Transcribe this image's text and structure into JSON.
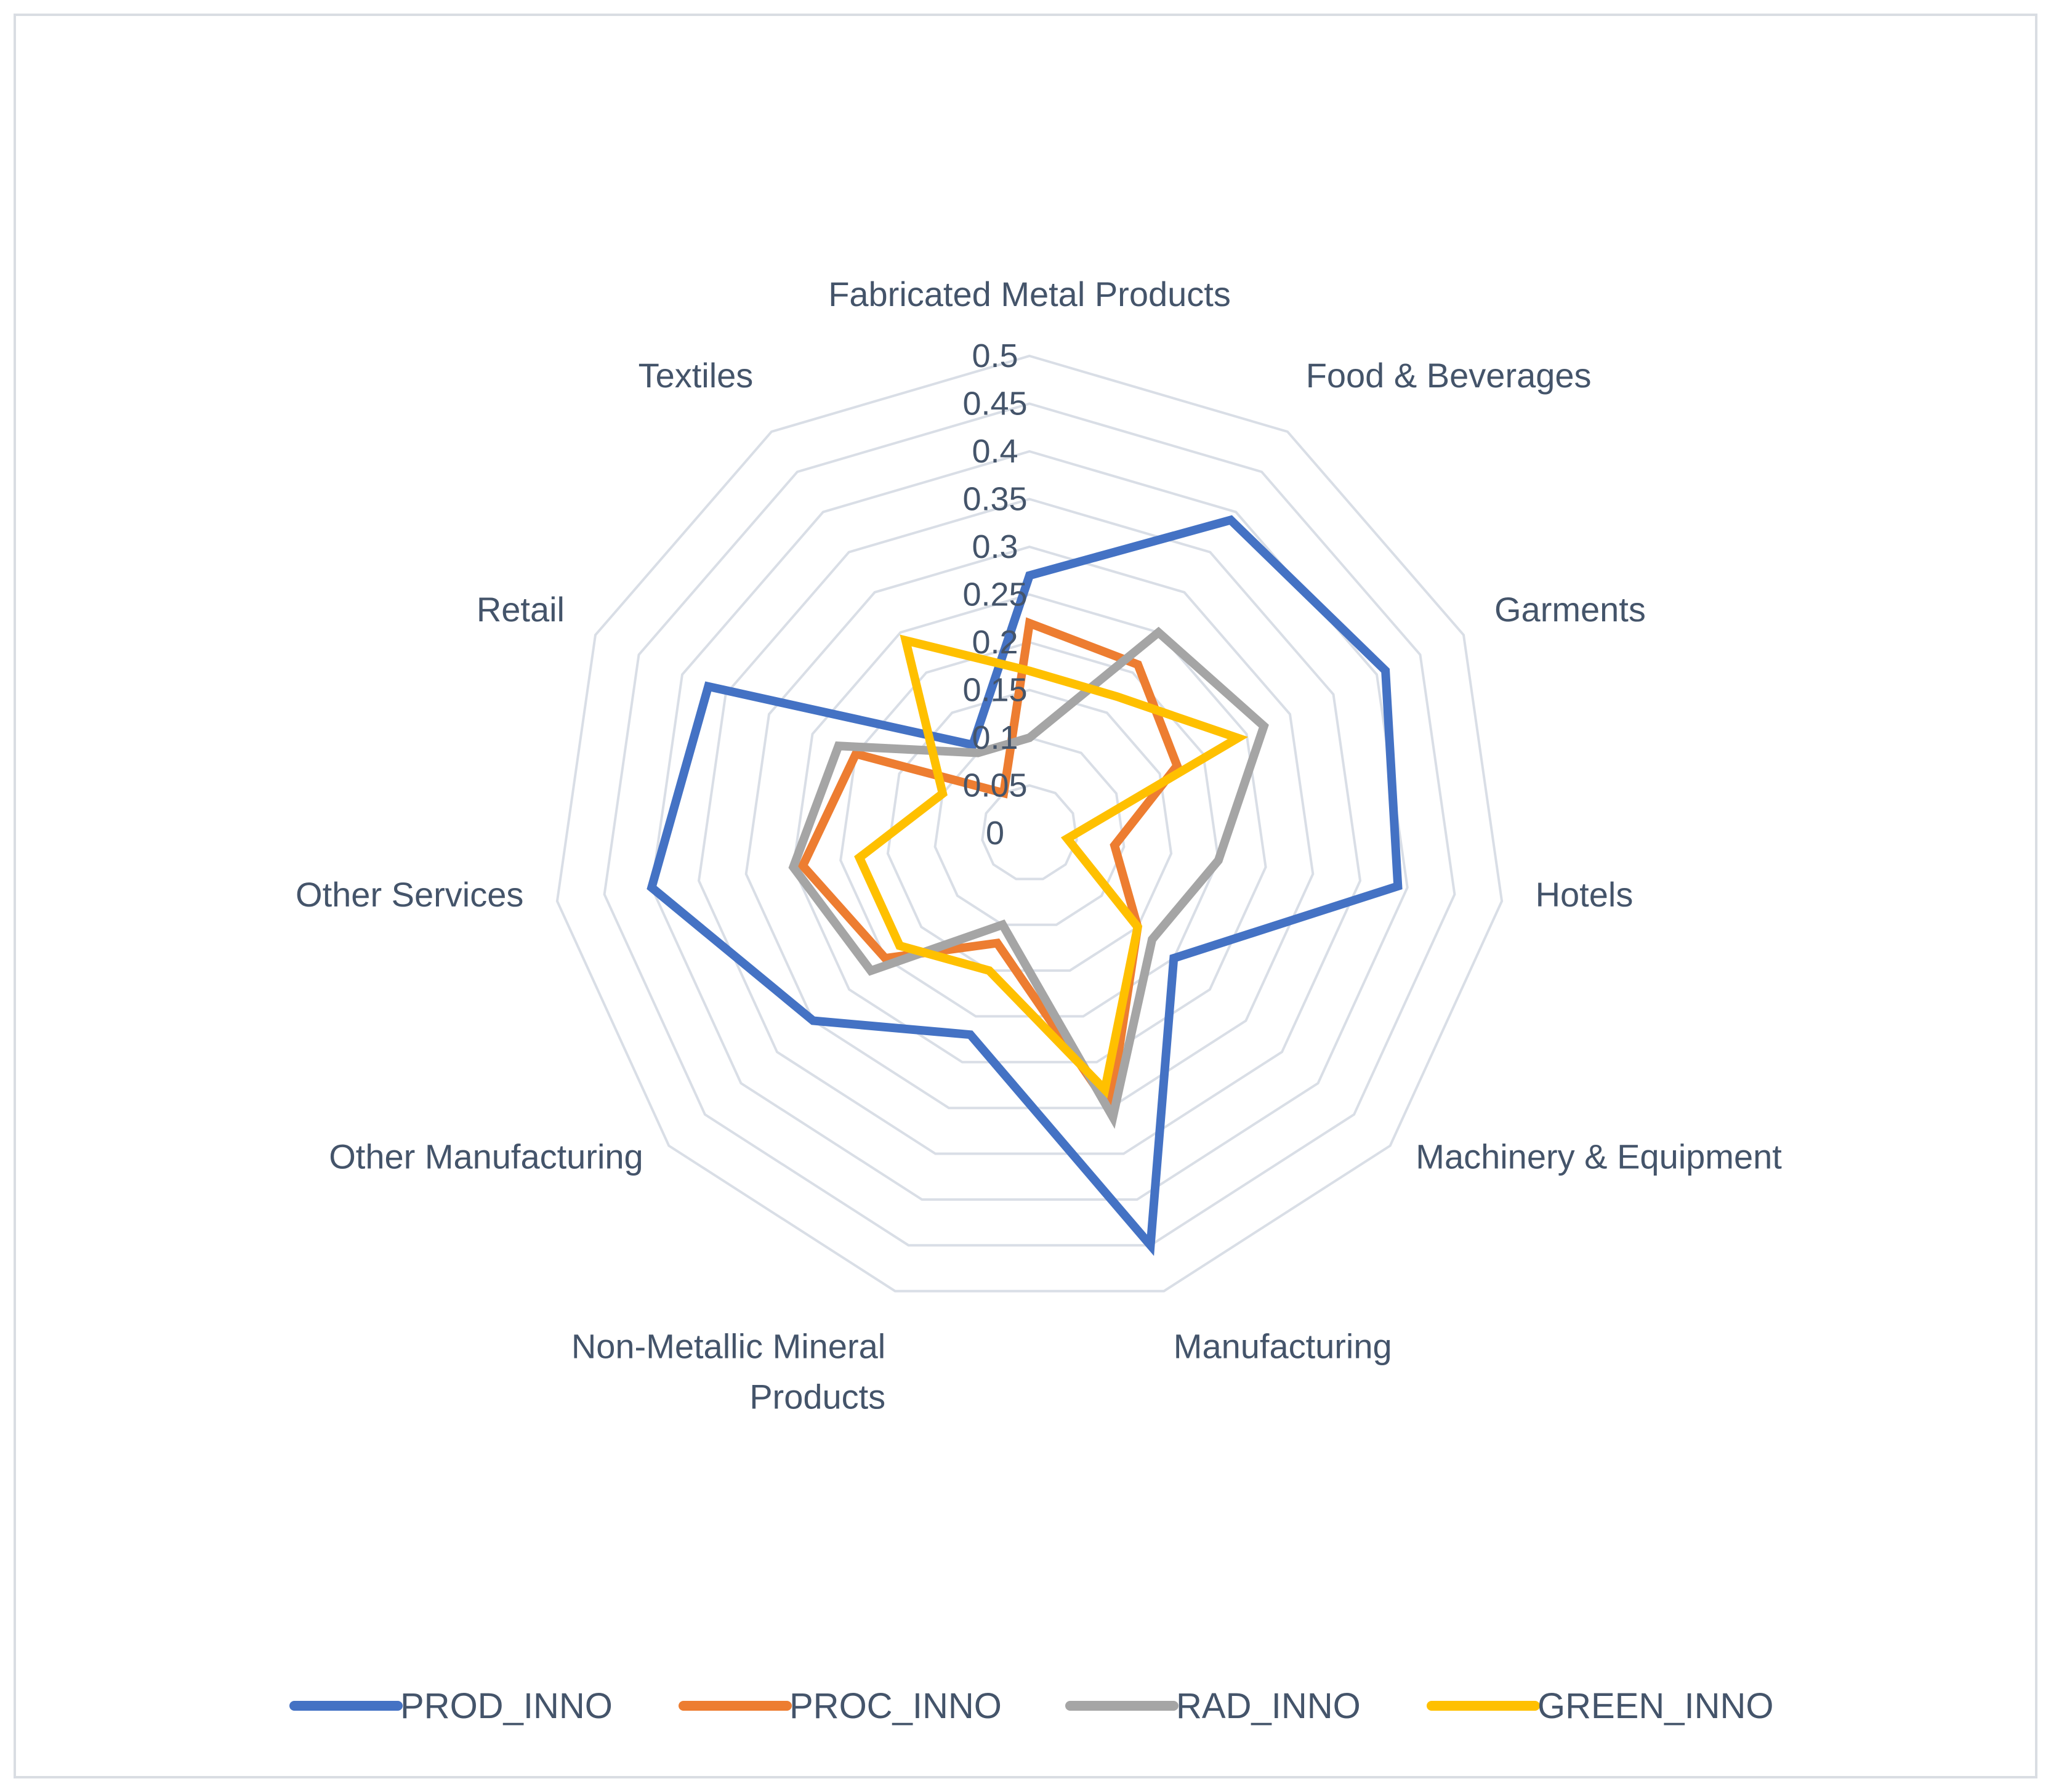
{
  "chart_data": {
    "type": "radar",
    "title": "",
    "categories": [
      "Fabricated Metal Products",
      "Food & Beverages",
      "Garments",
      "Hotels",
      "Machinery & Equipment",
      "Manufacturing",
      "Non-Metallic Mineral Products",
      "Other Manufacturing",
      "Other Services",
      "Retail",
      "Textiles"
    ],
    "category_lines": [
      [
        "Fabricated Metal Products"
      ],
      [
        "Food & Beverages"
      ],
      [
        "Garments"
      ],
      [
        "Hotels"
      ],
      [
        "Machinery & Equipment"
      ],
      [
        "Manufacturing"
      ],
      [
        "Non-Metallic Mineral",
        "Products"
      ],
      [
        "Other Manufacturing"
      ],
      [
        "Other Services"
      ],
      [
        "Retail"
      ],
      [
        "Textiles"
      ]
    ],
    "ticks": [
      "0",
      "0.05",
      "0.1",
      "0.15",
      "0.2",
      "0.25",
      "0.3",
      "0.35",
      "0.4",
      "0.45",
      "0.5"
    ],
    "rmax": 0.5,
    "grid": true,
    "legend_position": "bottom",
    "series": [
      {
        "name": "PROD_INNO",
        "color": "#4472c4",
        "values": [
          0.27,
          0.39,
          0.41,
          0.39,
          0.2,
          0.45,
          0.22,
          0.3,
          0.4,
          0.37,
          0.11
        ]
      },
      {
        "name": "PROC_INNO",
        "color": "#ed7d31",
        "values": [
          0.22,
          0.21,
          0.17,
          0.09,
          0.15,
          0.3,
          0.12,
          0.2,
          0.24,
          0.2,
          0.05
        ]
      },
      {
        "name": "RAD_INNO",
        "color": "#a5a5a5",
        "values": [
          0.1,
          0.25,
          0.27,
          0.2,
          0.17,
          0.31,
          0.1,
          0.22,
          0.25,
          0.22,
          0.1
        ]
      },
      {
        "name": "GREEN_INNO",
        "color": "#ffc000",
        "values": [
          0.17,
          0.17,
          0.24,
          0.04,
          0.15,
          0.28,
          0.15,
          0.18,
          0.18,
          0.1,
          0.24
        ]
      }
    ]
  }
}
